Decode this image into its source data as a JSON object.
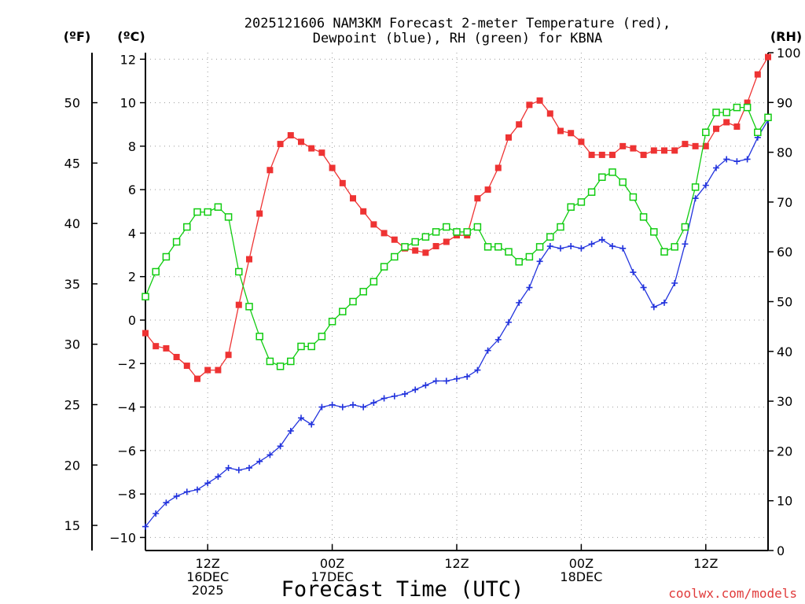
{
  "title_line1": "2025121606 NAM3KM Forecast 2-meter Temperature (red),",
  "title_line2": "Dewpoint (blue), RH (green) for KBNA",
  "credit": "coolwx.com/models",
  "colors": {
    "temperature": "#ee3333",
    "dewpoint": "#2233dd",
    "rh": "#11cc11",
    "grid": "#999999"
  },
  "chart_data": {
    "type": "line",
    "title": "2025121606 NAM3KM Forecast 2-meter Temperature (red), Dewpoint (blue), RH (green) for KBNA",
    "xlabel": "Forecast Time (UTC)",
    "x_unit": "forecast hour from 2025-12-16 06Z",
    "xlim": [
      0,
      60
    ],
    "x_ticks": [
      {
        "x": 6,
        "lines": [
          "12Z",
          "16DEC",
          "2025"
        ]
      },
      {
        "x": 18,
        "lines": [
          "00Z",
          "17DEC"
        ]
      },
      {
        "x": 30,
        "lines": [
          "12Z"
        ]
      },
      {
        "x": 42,
        "lines": [
          "00Z",
          "18DEC"
        ]
      },
      {
        "x": 54,
        "lines": [
          "12Z"
        ]
      }
    ],
    "axes": {
      "left_f": {
        "label": "(ºF)",
        "ticks": [
          15,
          20,
          25,
          30,
          35,
          40,
          45,
          50
        ]
      },
      "left_c": {
        "label": "(ºC)",
        "ylim": [
          -10.6,
          12.3
        ],
        "ticks": [
          -10,
          -8,
          -6,
          -4,
          -2,
          0,
          2,
          4,
          6,
          8,
          10,
          12
        ]
      },
      "right_rh": {
        "label": "(RH)",
        "ylim": [
          0,
          100
        ],
        "ticks": [
          0,
          10,
          20,
          30,
          40,
          50,
          60,
          70,
          80,
          90,
          100
        ]
      }
    },
    "grid": true,
    "series": [
      {
        "name": "Temperature",
        "unit": "°C",
        "axis": "left_c",
        "marker": "filled-square",
        "x": [
          0,
          1,
          2,
          3,
          4,
          5,
          6,
          7,
          8,
          9,
          10,
          11,
          12,
          13,
          14,
          15,
          16,
          17,
          18,
          19,
          20,
          21,
          22,
          23,
          24,
          25,
          26,
          27,
          28,
          29,
          30,
          31,
          32,
          33,
          34,
          35,
          36,
          37,
          38,
          39,
          40,
          41,
          42,
          43,
          44,
          45,
          46,
          47,
          48,
          49,
          50,
          51,
          52,
          53,
          54,
          55,
          56,
          57,
          58,
          59,
          60
        ],
        "values": [
          -0.6,
          -1.2,
          -1.3,
          -1.7,
          -2.1,
          -2.7,
          -2.3,
          -2.3,
          -1.6,
          0.7,
          2.8,
          4.9,
          6.9,
          8.1,
          8.5,
          8.2,
          7.9,
          7.7,
          7.0,
          6.3,
          5.6,
          5.0,
          4.4,
          4.0,
          3.7,
          3.3,
          3.2,
          3.1,
          3.4,
          3.6,
          3.9,
          3.9,
          5.6,
          6.0,
          7.0,
          8.4,
          9.0,
          9.9,
          10.1,
          9.5,
          8.7,
          8.6,
          8.2,
          7.6,
          7.6,
          7.6,
          8.0,
          7.9,
          7.6,
          7.8,
          7.8,
          7.8,
          8.1,
          8.0,
          8.0,
          8.8,
          9.1,
          8.9,
          10.0,
          11.3,
          12.1
        ]
      },
      {
        "name": "Dewpoint",
        "unit": "°C",
        "axis": "left_c",
        "marker": "plus",
        "x": [
          0,
          1,
          2,
          3,
          4,
          5,
          6,
          7,
          8,
          9,
          10,
          11,
          12,
          13,
          14,
          15,
          16,
          17,
          18,
          19,
          20,
          21,
          22,
          23,
          24,
          25,
          26,
          27,
          28,
          29,
          30,
          31,
          32,
          33,
          34,
          35,
          36,
          37,
          38,
          39,
          40,
          41,
          42,
          43,
          44,
          45,
          46,
          47,
          48,
          49,
          50,
          51,
          52,
          53,
          54,
          55,
          56,
          57,
          58,
          59,
          60
        ],
        "values": [
          -9.5,
          -8.9,
          -8.4,
          -8.1,
          -7.9,
          -7.8,
          -7.5,
          -7.2,
          -6.8,
          -6.9,
          -6.8,
          -6.5,
          -6.2,
          -5.8,
          -5.1,
          -4.5,
          -4.8,
          -4.0,
          -3.9,
          -4.0,
          -3.9,
          -4.0,
          -3.8,
          -3.6,
          -3.5,
          -3.4,
          -3.2,
          -3.0,
          -2.8,
          -2.8,
          -2.7,
          -2.6,
          -2.3,
          -1.4,
          -0.9,
          -0.1,
          0.8,
          1.5,
          2.7,
          3.4,
          3.3,
          3.4,
          3.3,
          3.5,
          3.7,
          3.4,
          3.3,
          2.2,
          1.5,
          0.6,
          0.8,
          1.7,
          3.5,
          5.6,
          6.2,
          7.0,
          7.4,
          7.3,
          7.4,
          8.4,
          9.2
        ]
      },
      {
        "name": "RH",
        "unit": "%",
        "axis": "right_rh",
        "marker": "open-square",
        "x": [
          0,
          1,
          2,
          3,
          4,
          5,
          6,
          7,
          8,
          9,
          10,
          11,
          12,
          13,
          14,
          15,
          16,
          17,
          18,
          19,
          20,
          21,
          22,
          23,
          24,
          25,
          26,
          27,
          28,
          29,
          30,
          31,
          32,
          33,
          34,
          35,
          36,
          37,
          38,
          39,
          40,
          41,
          42,
          43,
          44,
          45,
          46,
          47,
          48,
          49,
          50,
          51,
          52,
          53,
          54,
          55,
          56,
          57,
          58,
          59,
          60
        ],
        "values": [
          51,
          56,
          59,
          62,
          65,
          68,
          68,
          69,
          67,
          56,
          49,
          43,
          38,
          37,
          38,
          41,
          41,
          43,
          46,
          48,
          50,
          52,
          54,
          57,
          59,
          61,
          62,
          63,
          64,
          65,
          64,
          64,
          65,
          61,
          61,
          60,
          58,
          59,
          61,
          63,
          65,
          69,
          70,
          72,
          75,
          76,
          74,
          71,
          67,
          64,
          60,
          61,
          65,
          73,
          84,
          88,
          88,
          89,
          89,
          84,
          87
        ]
      }
    ]
  }
}
